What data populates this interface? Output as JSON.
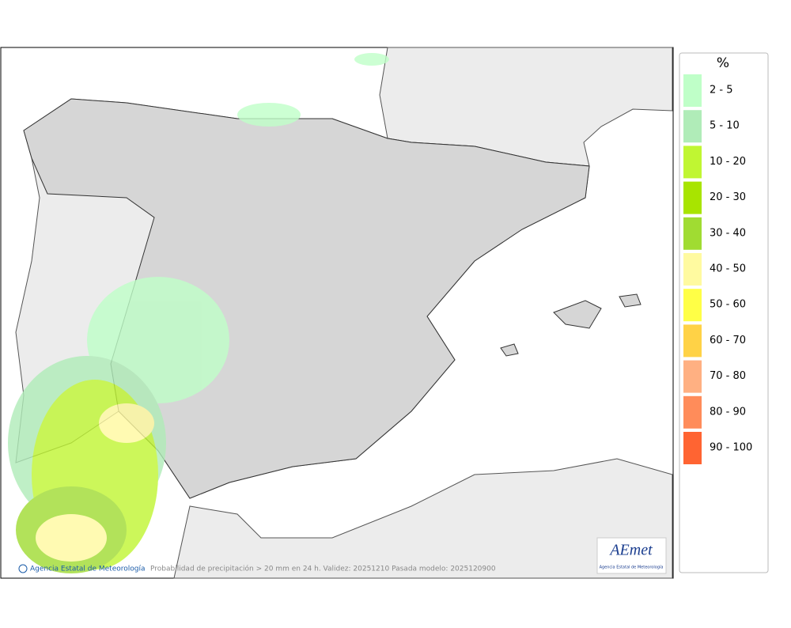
{
  "legend": {
    "title": "%",
    "items": [
      {
        "label": "2 - 5",
        "color": "#bfffc8"
      },
      {
        "label": "5 - 10",
        "color": "#b0ecb8"
      },
      {
        "label": "10 - 20",
        "color": "#c0f632"
      },
      {
        "label": "20 - 30",
        "color": "#a8e400"
      },
      {
        "label": "30 - 40",
        "color": "#a0dc32"
      },
      {
        "label": "40 - 50",
        "color": "#fffaa0"
      },
      {
        "label": "50 - 60",
        "color": "#ffff46"
      },
      {
        "label": "60 - 70",
        "color": "#ffd246"
      },
      {
        "label": "70 - 80",
        "color": "#ffb082"
      },
      {
        "label": "80 - 90",
        "color": "#ff8c5a"
      },
      {
        "label": "90 - 100",
        "color": "#ff6432"
      }
    ]
  },
  "footer": {
    "credit": "Agencia Estatal de Meteorología",
    "caption": "Probabilidad de precipitación > 20 mm en 24 h. Validez: 20251210 Pasada modelo: 2025120900"
  },
  "logo": {
    "name": "AEmet",
    "subtitle": "Agencia Estatal de Meteorología"
  }
}
